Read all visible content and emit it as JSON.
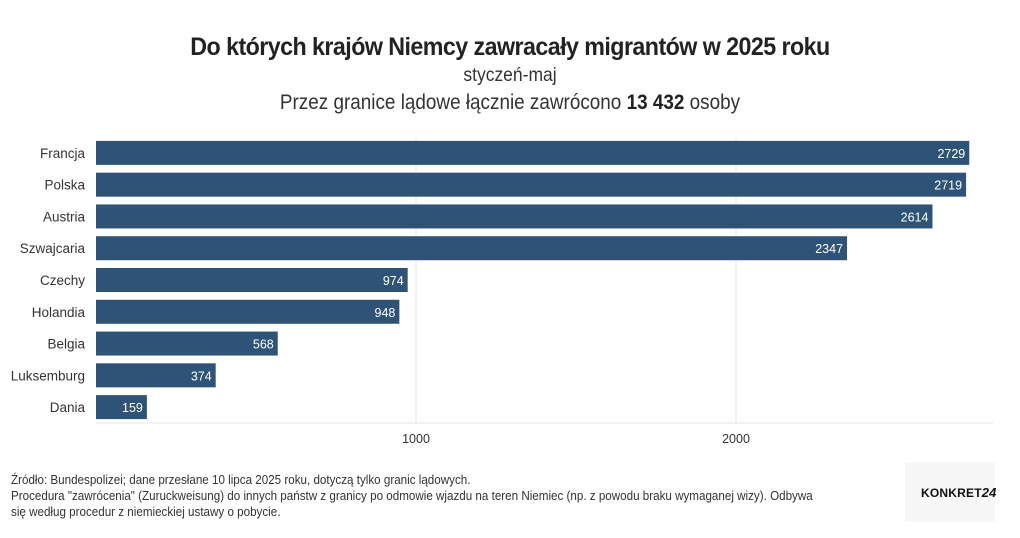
{
  "title": "Do których krajów Niemcy zawracały migrantów w 2025 roku",
  "subtitle": "styczeń-maj",
  "subtitle2": {
    "prefix": "Przez granice lądowe łącznie zawrócono",
    "total": "13 432",
    "suffix": "osoby"
  },
  "chart_data": {
    "type": "bar",
    "orientation": "horizontal",
    "categories": [
      "Francja",
      "Polska",
      "Austria",
      "Szwajcaria",
      "Czechy",
      "Holandia",
      "Belgia",
      "Luksemburg",
      "Dania"
    ],
    "values": [
      2729,
      2719,
      2614,
      2347,
      974,
      948,
      568,
      374,
      159
    ],
    "xticks": [
      1000,
      2000
    ],
    "xlim": [
      0,
      2800
    ],
    "grid": true,
    "bar_color": "#2e5377",
    "title": "Do których krajów Niemcy zawracały migrantów w 2025 roku",
    "xlabel": "",
    "ylabel": ""
  },
  "footer": {
    "line1": "Źródło: Bundespolizei; dane przesłane 10 lipca 2025 roku, dotyczą tylko granic lądowych.",
    "line2": "Procedura \"zawrócenia\" (Zuruckweisung) do innych państw z granicy po odmowie wjazdu na teren Niemiec (np. z powodu braku wymaganej wizy). Odbywa się według procedur z niemieckiej ustawy o pobycie."
  },
  "logo": {
    "text": "KONKRET",
    "number": "24"
  }
}
